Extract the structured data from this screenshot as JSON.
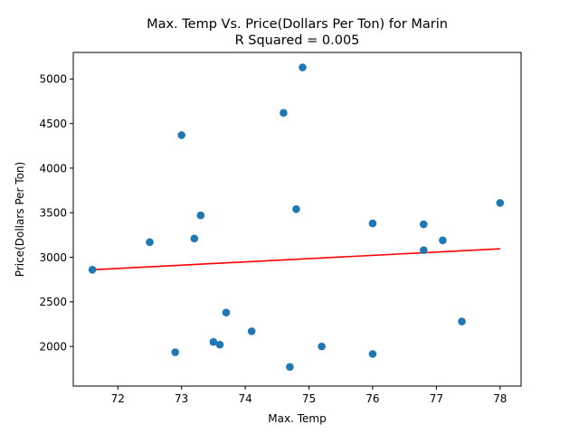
{
  "chart_data": {
    "type": "scatter",
    "title": "Max. Temp Vs. Price(Dollars Per Ton) for Marin",
    "subtitle": "R Squared =  0.005",
    "xlabel": "Max. Temp",
    "ylabel": "Price(Dollars Per Ton)",
    "xlim": [
      71.3,
      78.33
    ],
    "ylim": [
      1555,
      5298
    ],
    "xticks": [
      72,
      73,
      74,
      75,
      76,
      77,
      78
    ],
    "yticks": [
      2000,
      2500,
      3000,
      3500,
      4000,
      4500,
      5000
    ],
    "grid": false,
    "colors": {
      "points": "#1f77b4",
      "regression": "#ff0000"
    },
    "points": [
      {
        "x": 71.6,
        "y": 2860
      },
      {
        "x": 72.5,
        "y": 3170
      },
      {
        "x": 72.9,
        "y": 1935
      },
      {
        "x": 73.0,
        "y": 4370
      },
      {
        "x": 73.2,
        "y": 3210
      },
      {
        "x": 73.3,
        "y": 3470
      },
      {
        "x": 73.5,
        "y": 2050
      },
      {
        "x": 73.6,
        "y": 2020
      },
      {
        "x": 73.7,
        "y": 2380
      },
      {
        "x": 74.1,
        "y": 2170
      },
      {
        "x": 74.6,
        "y": 4620
      },
      {
        "x": 74.7,
        "y": 1770
      },
      {
        "x": 74.8,
        "y": 3540
      },
      {
        "x": 74.9,
        "y": 5130
      },
      {
        "x": 75.2,
        "y": 2000
      },
      {
        "x": 76.0,
        "y": 3380
      },
      {
        "x": 76.0,
        "y": 1915
      },
      {
        "x": 76.8,
        "y": 3370
      },
      {
        "x": 76.8,
        "y": 3080
      },
      {
        "x": 77.1,
        "y": 3190
      },
      {
        "x": 77.4,
        "y": 2280
      },
      {
        "x": 78.0,
        "y": 3610
      }
    ],
    "regression_line": [
      {
        "x": 71.6,
        "y": 2860
      },
      {
        "x": 78.0,
        "y": 3095
      }
    ]
  }
}
